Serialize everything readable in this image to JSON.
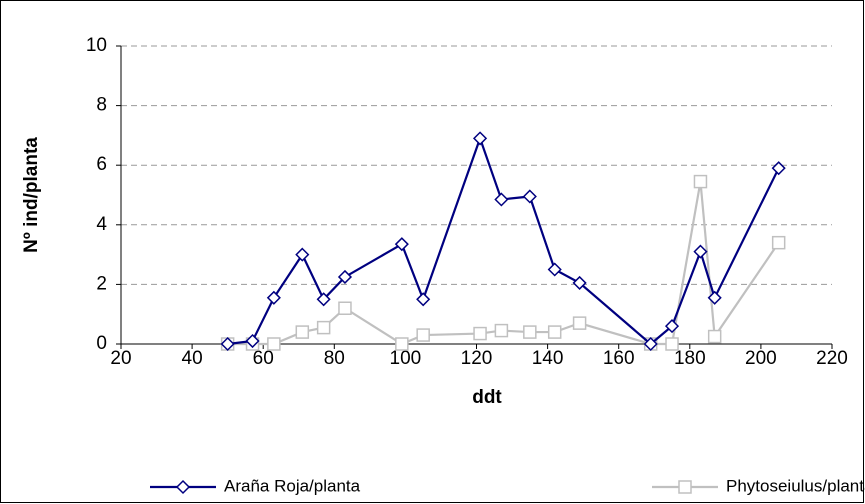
{
  "chart_data": {
    "type": "line",
    "xlabel": "ddt",
    "ylabel": "Nº ind/planta",
    "x": [
      50,
      57,
      63,
      71,
      77,
      83,
      99,
      105,
      121,
      127,
      135,
      142,
      149,
      169,
      175,
      183,
      187,
      205
    ],
    "series": [
      {
        "name": "Araña Roja/planta",
        "color": "#000080",
        "marker": "diamond",
        "values": [
          0,
          0.1,
          1.55,
          3.0,
          1.5,
          2.25,
          3.35,
          1.5,
          6.9,
          4.85,
          4.95,
          2.5,
          2.05,
          0,
          0.6,
          3.1,
          1.55,
          5.9
        ]
      },
      {
        "name": "Phytoseiulus/planta",
        "color": "#c0c0c0",
        "marker": "square",
        "values": [
          0,
          0,
          0,
          0.4,
          0.55,
          1.2,
          0,
          0.3,
          0.35,
          0.45,
          0.4,
          0.4,
          0.7,
          0,
          0,
          5.45,
          0.25,
          3.4
        ]
      }
    ],
    "xlim": [
      20,
      220
    ],
    "xticks": [
      20,
      40,
      60,
      80,
      100,
      120,
      140,
      160,
      180,
      200,
      220
    ],
    "ylim": [
      0,
      10
    ],
    "yticks": [
      0,
      2,
      4,
      6,
      8,
      10
    ],
    "grid": true,
    "legend": "bottom"
  }
}
